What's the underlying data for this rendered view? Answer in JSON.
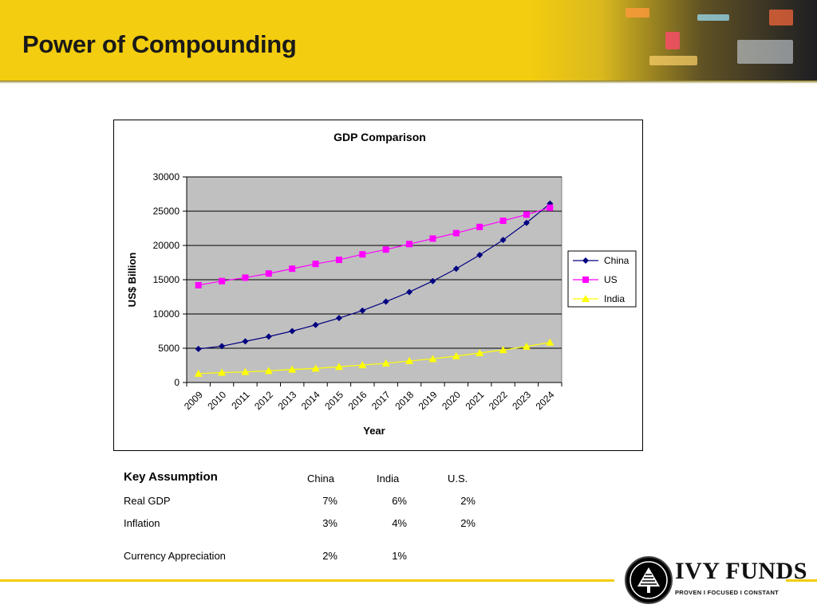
{
  "page": {
    "title": "Power of Compounding"
  },
  "chart_data": {
    "type": "line",
    "title": "GDP Comparison",
    "xlabel": "Year",
    "ylabel": "US$ Billion",
    "ylim": [
      0,
      30000
    ],
    "yticks": [
      "0",
      "5000",
      "10000",
      "15000",
      "20000",
      "25000",
      "30000"
    ],
    "categories": [
      "2009",
      "2010",
      "2011",
      "2012",
      "2013",
      "2014",
      "2015",
      "2016",
      "2017",
      "2018",
      "2019",
      "2020",
      "2021",
      "2022",
      "2023",
      "2024"
    ],
    "series": [
      {
        "name": "China",
        "color": "#000080",
        "marker": "diamond",
        "values": [
          4900,
          5300,
          6000,
          6700,
          7500,
          8400,
          9400,
          10500,
          11800,
          13200,
          14800,
          16600,
          18600,
          20800,
          23300,
          26100
        ]
      },
      {
        "name": "US",
        "color": "#ff00ff",
        "marker": "square",
        "values": [
          14200,
          14800,
          15300,
          15900,
          16600,
          17300,
          17900,
          18700,
          19400,
          20200,
          21000,
          21800,
          22700,
          23600,
          24500,
          25500
        ]
      },
      {
        "name": "India",
        "color": "#ffff00",
        "marker": "triangle",
        "values": [
          1300,
          1450,
          1550,
          1700,
          1900,
          2050,
          2300,
          2550,
          2800,
          3150,
          3450,
          3850,
          4300,
          4750,
          5250,
          5850
        ]
      }
    ],
    "grid": true,
    "legend": "right",
    "plot_background": "#c0c0c0"
  },
  "assumptions": {
    "title": "Key Assumption",
    "columns": [
      "China",
      "India",
      "U.S."
    ],
    "rows": [
      {
        "label": "Real GDP",
        "values": [
          "7%",
          "6%",
          "2%"
        ]
      },
      {
        "label": "Inflation",
        "values": [
          "3%",
          "4%",
          "2%"
        ]
      },
      {
        "label": "Currency Appreciation",
        "values": [
          "2%",
          "1%",
          ""
        ]
      }
    ]
  },
  "logo": {
    "name": "IVY FUNDS",
    "tagline": "PROVEN  I  FOCUSED  I  CONSTANT",
    "color": "#111111"
  },
  "theme": {
    "accent": "#f3cd0f"
  }
}
